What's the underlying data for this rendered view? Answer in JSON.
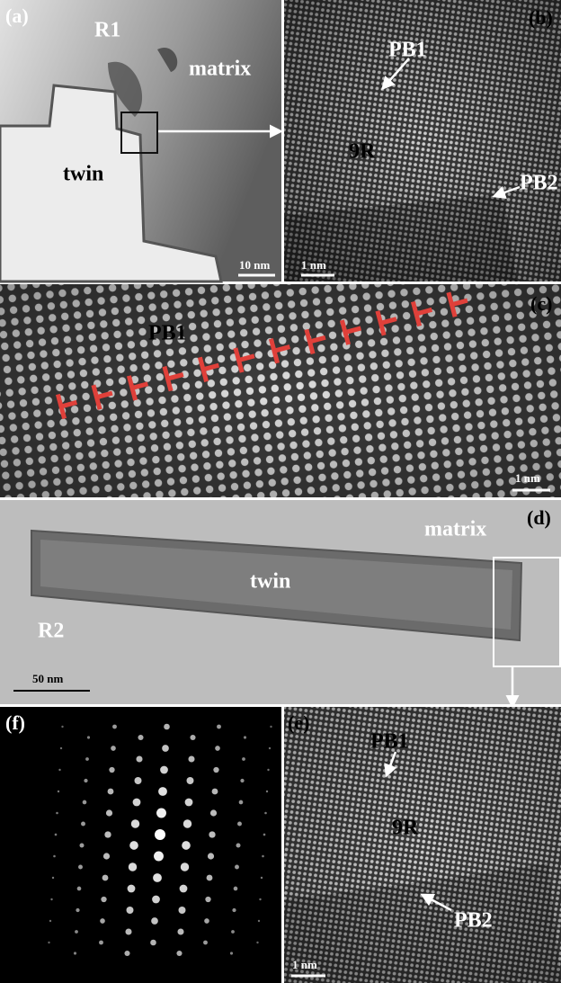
{
  "panels": [
    {
      "label": "(a)",
      "annotations": [
        "R1",
        "matrix",
        "twin"
      ],
      "scale_bar": "10 nm"
    },
    {
      "label": "(b)",
      "annotations": [
        "PB1",
        "9R",
        "PB2"
      ],
      "scale_bar": "1 nm"
    },
    {
      "label": "(c)",
      "annotations": [
        "PB1"
      ],
      "scale_bar": "1 nm"
    },
    {
      "label": "(d)",
      "annotations": [
        "matrix",
        "twin",
        "R2"
      ],
      "scale_bar": "50 nm"
    },
    {
      "label": "(f)"
    },
    {
      "label": "(e)",
      "annotations": [
        "PB1",
        "9R",
        "PB2"
      ],
      "scale_bar": "1 nm"
    }
  ]
}
